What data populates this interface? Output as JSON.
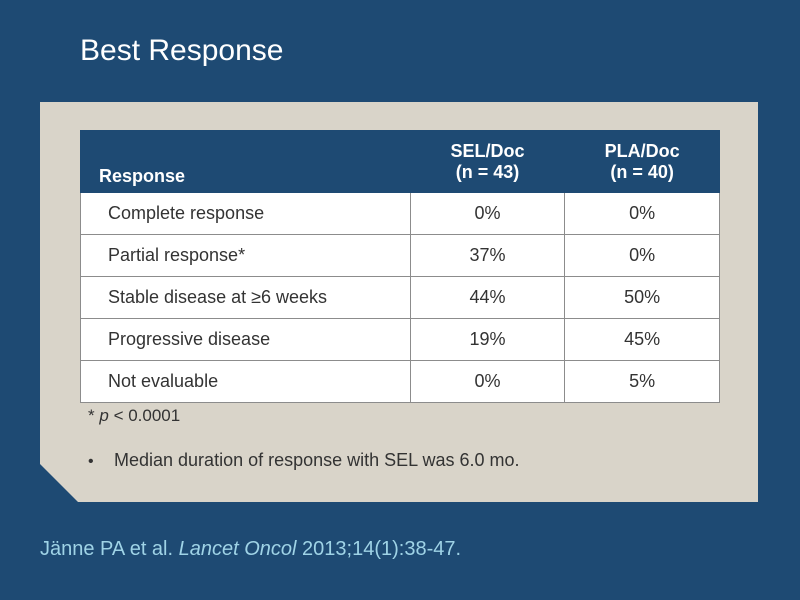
{
  "slide": {
    "title": "Best Response"
  },
  "table": {
    "header": {
      "response": "Response",
      "col1_line1": "SEL/Doc",
      "col1_line2": "(n = 43)",
      "col2_line1": "PLA/Doc",
      "col2_line2": "(n = 40)"
    },
    "rows": [
      {
        "label": "Complete response",
        "sel": "0%",
        "pla": "0%"
      },
      {
        "label": "Partial response*",
        "sel": "37%",
        "pla": "0%"
      },
      {
        "label": "Stable disease at ≥6 weeks",
        "sel": "44%",
        "pla": "50%"
      },
      {
        "label": "Progressive disease",
        "sel": "19%",
        "pla": "45%"
      },
      {
        "label": "Not evaluable",
        "sel": "0%",
        "pla": "5%"
      }
    ]
  },
  "footnote": {
    "asterisk": "*",
    "variable": "p",
    "rest": "< 0.0001"
  },
  "bullet": {
    "marker": "•",
    "text": "Median duration of response with SEL was 6.0 mo."
  },
  "citation": {
    "authors": "Jänne PA et al.",
    "journal": "Lancet Oncol",
    "details": "2013;14(1):38-47."
  }
}
